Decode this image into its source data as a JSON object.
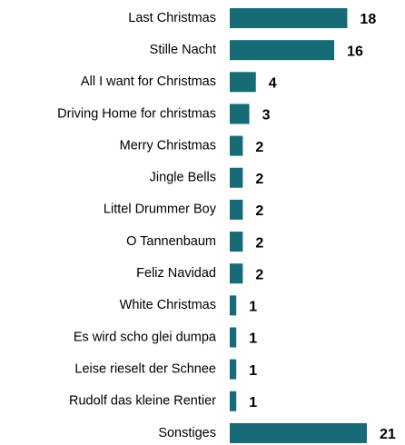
{
  "chart_data": {
    "type": "bar",
    "orientation": "horizontal",
    "categories": [
      "Last Christmas",
      "Stille Nacht",
      "All I want for Christmas",
      "Driving Home for christmas",
      "Merry Christmas",
      "Jingle Bells",
      "Littel Drummer Boy",
      "O Tannenbaum",
      "Feliz Navidad",
      "White Christmas",
      "Es wird scho glei dumpa",
      "Leise rieselt der Schnee",
      "Rudolf das kleine Rentier",
      "Sonstiges"
    ],
    "values": [
      18,
      16,
      4,
      3,
      2,
      2,
      2,
      2,
      2,
      1,
      1,
      1,
      1,
      21
    ],
    "color": "#176b77"
  }
}
